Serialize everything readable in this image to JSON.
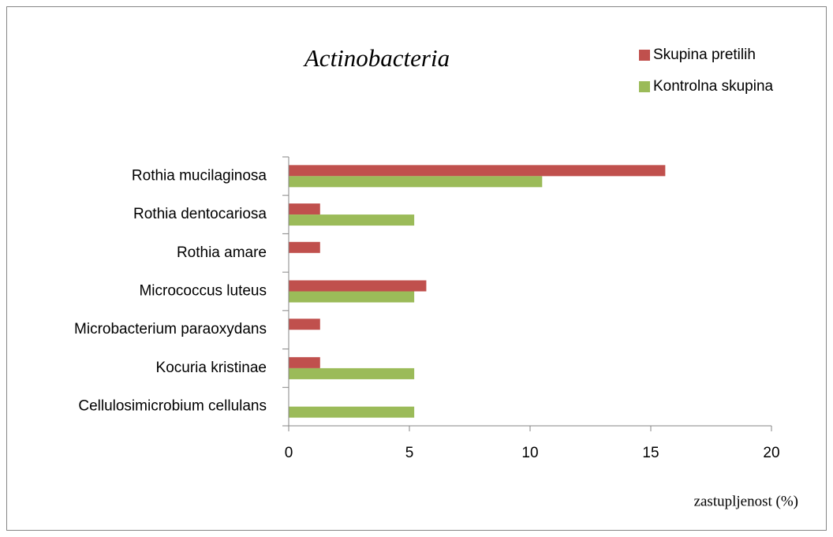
{
  "chart_data": {
    "type": "hbar",
    "title": "Actinobacteria",
    "x_label": "zastupljenost (%)",
    "categories": [
      "Rothia mucilaginosa",
      "Rothia dentocariosa",
      "Rothia amare",
      "Micrococcus luteus",
      "Microbacterium paraoxydans",
      "Kocuria kristinae",
      "Cellulosimicrobium cellulans"
    ],
    "series": [
      {
        "name": "Skupina pretilih",
        "color": "#c0504d",
        "values": [
          15.6,
          1.3,
          1.3,
          5.7,
          1.3,
          1.3,
          0
        ]
      },
      {
        "name": "Kontrolna skupina",
        "color": "#9bbb59",
        "values": [
          10.5,
          5.2,
          0,
          5.2,
          0,
          5.2,
          5.2
        ]
      }
    ],
    "xlim": [
      0,
      20
    ],
    "xticks": [
      0,
      5,
      10,
      15,
      20
    ],
    "legend": "top-right"
  }
}
